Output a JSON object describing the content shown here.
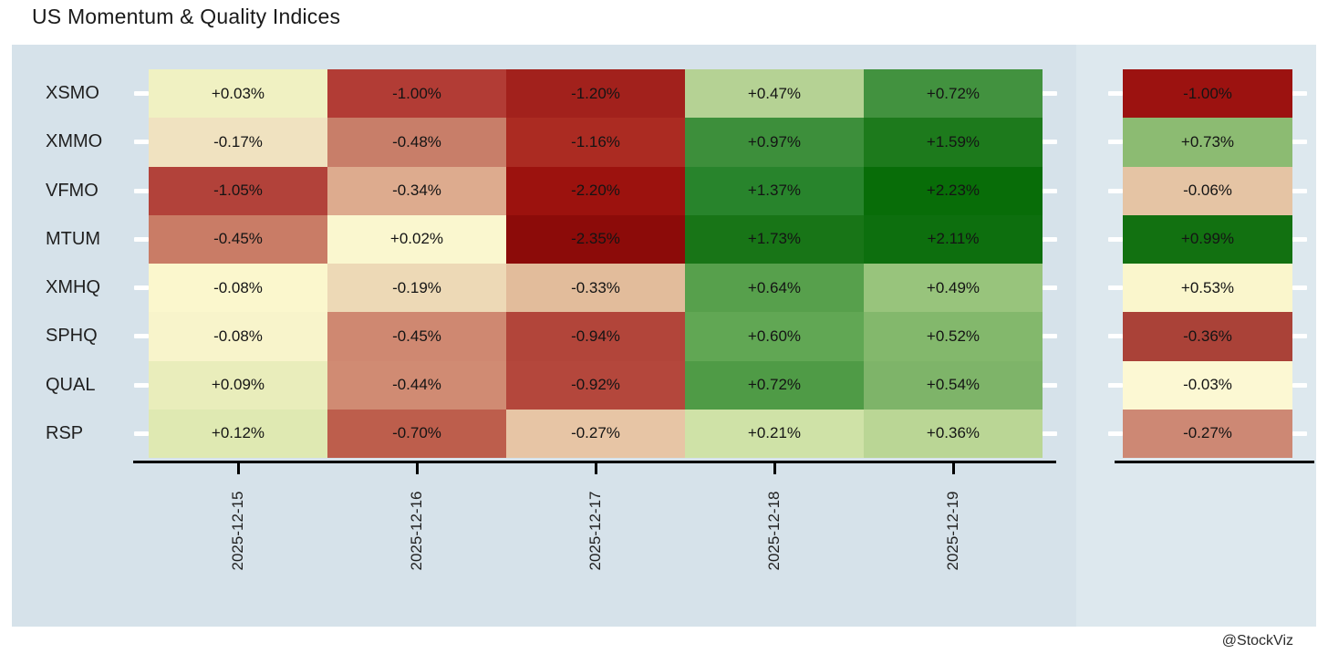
{
  "page": {
    "title": "US Momentum & Quality Indices",
    "watermark": "@StockViz"
  },
  "colors": {
    "panel_bg": "#d6e2ea",
    "panel_bg_right": "#dde8ee",
    "axis": "#000000",
    "row_tick": "#ffffff",
    "title_text": "#1a1a1a",
    "cell_text": "#141414"
  },
  "chart_data": {
    "type": "heatmap",
    "title": "US Momentum & Quality Indices",
    "legend": "none",
    "colormap": "diverging red-yellow-green (negative=red, near zero=cream, positive=green)",
    "rows": [
      "XSMO",
      "XMMO",
      "VFMO",
      "MTUM",
      "XMHQ",
      "SPHQ",
      "QUAL",
      "RSP"
    ],
    "columns": [
      "2025-12-15",
      "2025-12-16",
      "2025-12-17",
      "2025-12-18",
      "2025-12-19"
    ],
    "values": [
      [
        0.03,
        -1.0,
        -1.2,
        0.47,
        0.72
      ],
      [
        -0.17,
        -0.48,
        -1.16,
        0.97,
        1.59
      ],
      [
        -1.05,
        -0.34,
        -2.2,
        1.37,
        2.23
      ],
      [
        -0.45,
        0.02,
        -2.35,
        1.73,
        2.11
      ],
      [
        -0.08,
        -0.19,
        -0.33,
        0.64,
        0.49
      ],
      [
        -0.08,
        -0.45,
        -0.94,
        0.6,
        0.52
      ],
      [
        0.09,
        -0.44,
        -0.92,
        0.72,
        0.54
      ],
      [
        0.12,
        -0.7,
        -0.27,
        0.21,
        0.36
      ]
    ],
    "labels": [
      [
        "+0.03%",
        "-1.00%",
        "-1.20%",
        "+0.47%",
        "+0.72%"
      ],
      [
        "-0.17%",
        "-0.48%",
        "-1.16%",
        "+0.97%",
        "+1.59%"
      ],
      [
        "-1.05%",
        "-0.34%",
        "-2.20%",
        "+1.37%",
        "+2.23%"
      ],
      [
        "-0.45%",
        "+0.02%",
        "-2.35%",
        "+1.73%",
        "+2.11%"
      ],
      [
        "-0.08%",
        "-0.19%",
        "-0.33%",
        "+0.64%",
        "+0.49%"
      ],
      [
        "-0.08%",
        "-0.45%",
        "-0.94%",
        "+0.60%",
        "+0.52%"
      ],
      [
        "+0.09%",
        "-0.44%",
        "-0.92%",
        "+0.72%",
        "+0.54%"
      ],
      [
        "+0.12%",
        "-0.70%",
        "-0.27%",
        "+0.21%",
        "+0.36%"
      ]
    ],
    "cell_colors": [
      [
        "#f0f1c2",
        "#b23c35",
        "#a2211c",
        "#b5d294",
        "#42923f"
      ],
      [
        "#f0e2c0",
        "#c87e69",
        "#ab2b22",
        "#3d8f3b",
        "#1d7a1c"
      ],
      [
        "#b2423a",
        "#ddab8e",
        "#9c120e",
        "#28842c",
        "#086d08"
      ],
      [
        "#c97c66",
        "#faf7cf",
        "#8c0b09",
        "#187517",
        "#0d6f0e"
      ],
      [
        "#fbf7cd",
        "#edd9b6",
        "#e2bc9b",
        "#57a04c",
        "#98c47c"
      ],
      [
        "#f8f4cb",
        "#cf8871",
        "#b2453a",
        "#61a754",
        "#83b86c"
      ],
      [
        "#e9edbb",
        "#d08b73",
        "#b4473c",
        "#4f9b46",
        "#7eb469"
      ],
      [
        "#dfe9b2",
        "#bd5e4c",
        "#e7c5a5",
        "#cfe2a7",
        "#bad695"
      ]
    ],
    "summary_column": {
      "values": [
        -1.0,
        0.73,
        -0.06,
        0.99,
        0.53,
        -0.36,
        -0.03,
        -0.27
      ],
      "labels": [
        "-1.00%",
        "+0.73%",
        "-0.06%",
        "+0.99%",
        "+0.53%",
        "-0.36%",
        "-0.03%",
        "-0.27%"
      ],
      "colors": [
        "#9c1210",
        "#8cbb72",
        "#e5c4a4",
        "#127111",
        "#faf6cc",
        "#aa4238",
        "#fcf8d3",
        "#cd8874"
      ]
    }
  }
}
